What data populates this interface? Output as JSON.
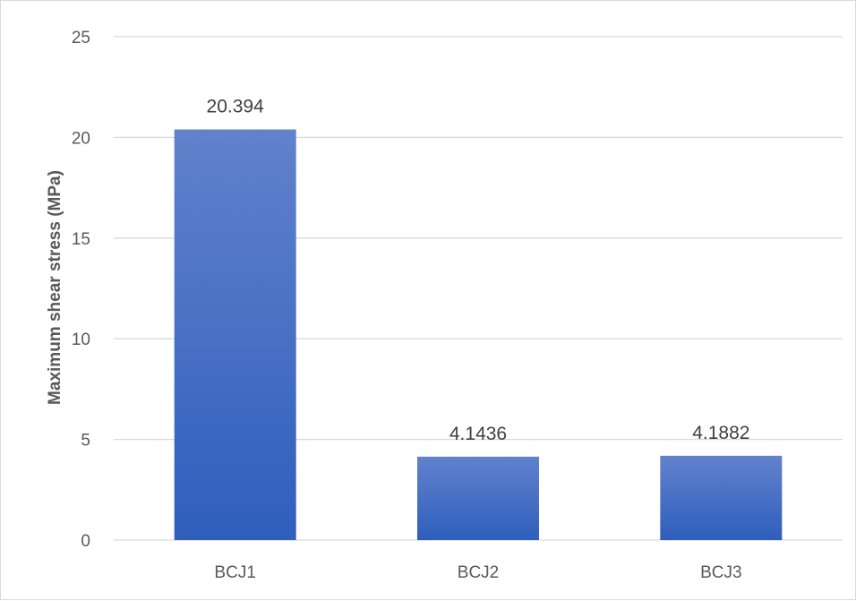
{
  "chart_data": {
    "type": "bar",
    "title": "",
    "xlabel": "",
    "ylabel": "Maximum shear stress (MPa)",
    "categories": [
      "BCJ1",
      "BCJ2",
      "BCJ3"
    ],
    "values": [
      20.394,
      4.1436,
      4.1882
    ],
    "data_labels": [
      "20.394",
      "4.1436",
      "4.1882"
    ],
    "ylim": [
      0,
      25
    ],
    "yticks": [
      0,
      5,
      10,
      15,
      20,
      25
    ],
    "ytick_labels": [
      "0",
      "5",
      "10",
      "15",
      "20",
      "25"
    ],
    "grid": true,
    "legend": "none",
    "colors": {
      "bar_top": "#6182cc",
      "bar_bottom": "#2f5ebd",
      "grid": "#d9d9d9",
      "text": "#595959"
    }
  }
}
